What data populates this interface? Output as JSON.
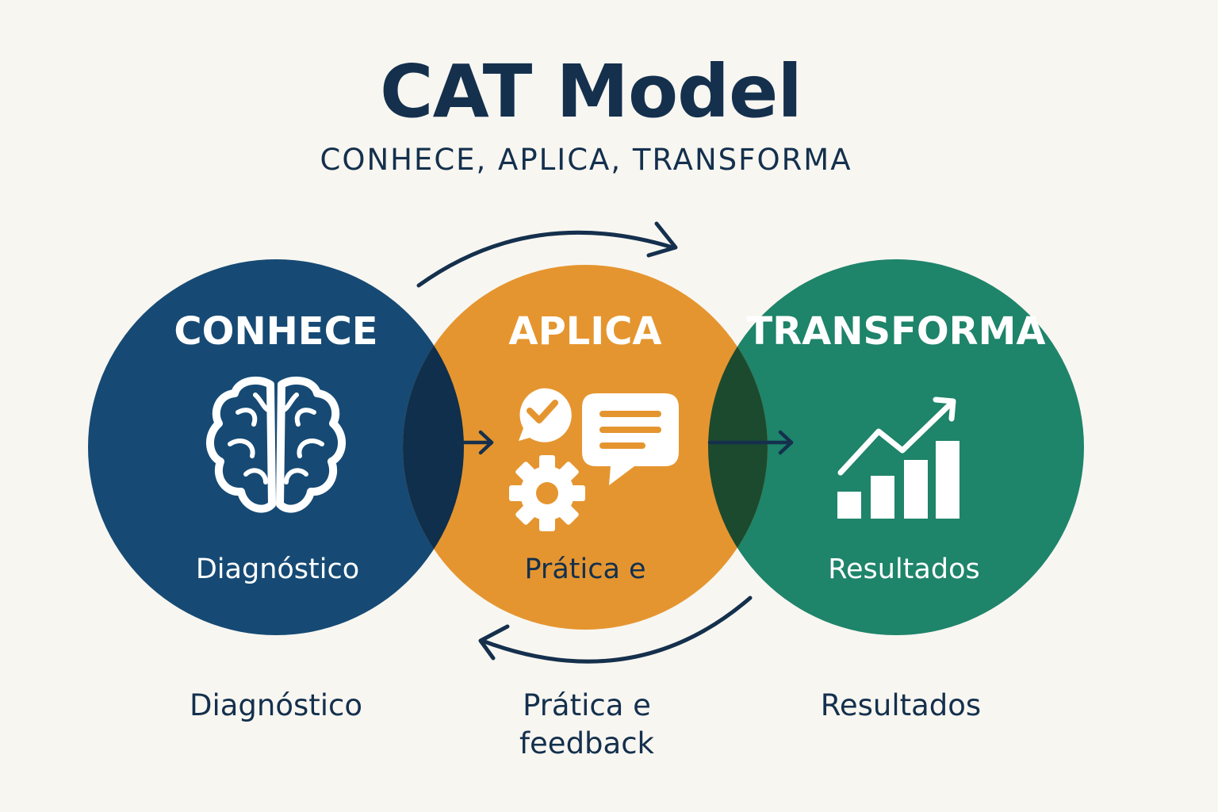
{
  "title": "CAT Model",
  "subtitle": "CONHECE, APLICA, TRANSFORMA",
  "stages": [
    {
      "name": "CONHECE",
      "inner_label": "Diagnóstico",
      "caption_lines": [
        "Diagnóstico"
      ],
      "color": "#164a74",
      "icon": "brain-icon"
    },
    {
      "name": "APLICA",
      "inner_label": "Prática e",
      "caption_lines": [
        "Prática e",
        "feedback"
      ],
      "color": "#e5952f",
      "icon": "check-chat-gear-icon"
    },
    {
      "name": "TRANSFORMA",
      "inner_label": "Resultados",
      "caption_lines": [
        "Resultados"
      ],
      "color": "#1e846a",
      "icon": "growth-chart-icon"
    }
  ],
  "colors": {
    "text": "#14304d",
    "background": "#f8f6f1",
    "arrow": "#14304d"
  }
}
